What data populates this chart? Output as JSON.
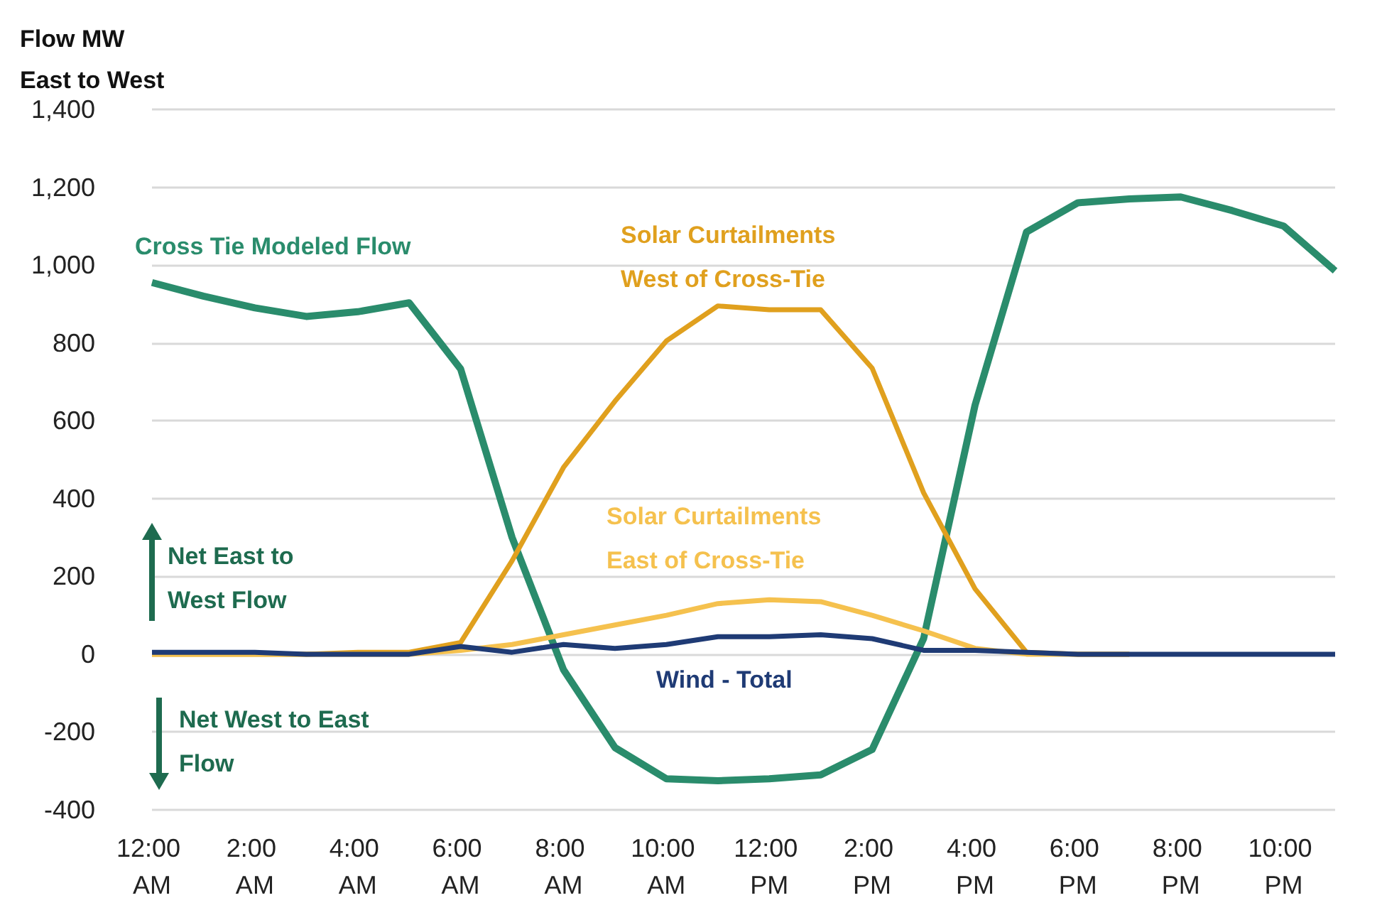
{
  "chart_data": {
    "type": "line",
    "ylabel": "Flow MW East to West",
    "categories": [
      "12:00 AM",
      null,
      "2:00 AM",
      null,
      "4:00 AM",
      null,
      "6:00 AM",
      null,
      "8:00 AM",
      null,
      "10:00 AM",
      null,
      "12:00 PM",
      null,
      "2:00 PM",
      null,
      "4:00 PM",
      null,
      "6:00 PM",
      null,
      "8:00 PM",
      null,
      "10:00 PM",
      null
    ],
    "series": [
      {
        "name": "Cross Tie Modeled Flow",
        "color": "#2a8c6c",
        "values": [
          955,
          920,
          890,
          868,
          880,
          903,
          733,
          300,
          -40,
          -240,
          -320,
          -325,
          -320,
          -310,
          -245,
          40,
          640,
          1085,
          1160,
          1170,
          1175,
          1140,
          1100,
          985
        ]
      },
      {
        "name": "Solar Curtailments West of Cross-Tie",
        "color": "#e0a01e",
        "values": [
          0,
          0,
          0,
          0,
          5,
          5,
          30,
          240,
          480,
          650,
          805,
          895,
          885,
          885,
          735,
          415,
          168,
          5,
          0,
          0,
          null,
          null,
          null,
          null
        ]
      },
      {
        "name": "Solar Curtailments East of Cross-Tie",
        "color": "#f5c14e",
        "values": [
          0,
          0,
          0,
          0,
          0,
          0,
          10,
          25,
          50,
          75,
          100,
          130,
          140,
          135,
          100,
          60,
          15,
          0,
          0,
          0,
          null,
          null,
          null,
          null
        ]
      },
      {
        "name": "Wind - Total",
        "color": "#1f3b75",
        "values": [
          5,
          5,
          5,
          0,
          0,
          0,
          20,
          5,
          25,
          15,
          25,
          45,
          45,
          50,
          40,
          10,
          10,
          5,
          0,
          0,
          0,
          0,
          0,
          0
        ]
      }
    ],
    "ylim": [
      -400,
      1400
    ],
    "yticks": [
      -400,
      -200,
      0,
      200,
      400,
      600,
      800,
      {
        "value": 1000,
        "label": "1,000"
      },
      {
        "value": 1200,
        "label": "1,200"
      },
      {
        "value": 1400,
        "label": "1,400"
      }
    ],
    "grid": "y",
    "marker": "none",
    "annotations": [
      "Net East to West Flow",
      "Net West to East Flow"
    ]
  }
}
